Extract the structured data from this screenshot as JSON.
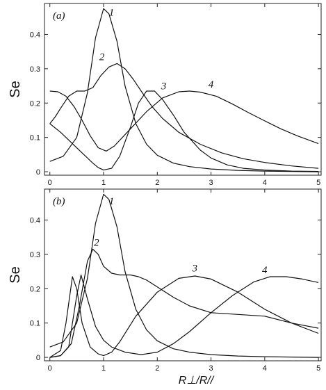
{
  "chart_data": [
    {
      "type": "line",
      "panel_label": "(a)",
      "ylabel": "Se",
      "xlabel": "",
      "xlim": [
        -0.1,
        5.05
      ],
      "ylim": [
        -0.01,
        0.49
      ],
      "xticks": [
        "0",
        "1",
        "2",
        "3",
        "4",
        "5"
      ],
      "yticks": [
        "0",
        "0.1",
        "0.2",
        "0.3",
        "0.4"
      ],
      "ytick_values": [
        0,
        0.1,
        0.2,
        0.3,
        0.4
      ],
      "xtick_values": [
        0,
        1,
        2,
        3,
        4,
        5
      ],
      "series": [
        {
          "name": "1",
          "label_at": [
            1.1,
            0.455
          ],
          "x": [
            0,
            0.25,
            0.5,
            0.7,
            0.85,
            1.0,
            1.1,
            1.25,
            1.4,
            1.6,
            1.8,
            2.0,
            2.3,
            2.6,
            3.0,
            3.5,
            4.0,
            5.0
          ],
          "y": [
            0.03,
            0.045,
            0.1,
            0.23,
            0.39,
            0.475,
            0.46,
            0.38,
            0.25,
            0.14,
            0.08,
            0.048,
            0.025,
            0.015,
            0.008,
            0.004,
            0.002,
            0.0
          ]
        },
        {
          "name": "2",
          "label_at": [
            0.92,
            0.325
          ],
          "x": [
            0,
            0.1,
            0.2,
            0.35,
            0.5,
            0.65,
            0.8,
            0.95,
            1.1,
            1.25,
            1.4,
            1.55,
            1.7,
            1.9,
            2.1,
            2.4,
            2.8,
            3.2,
            3.6,
            4.0,
            4.5,
            5.0
          ],
          "y": [
            0.14,
            0.16,
            0.185,
            0.22,
            0.235,
            0.235,
            0.245,
            0.28,
            0.305,
            0.315,
            0.3,
            0.27,
            0.235,
            0.19,
            0.155,
            0.115,
            0.08,
            0.055,
            0.038,
            0.027,
            0.017,
            0.01
          ]
        },
        {
          "name": "3",
          "label_at": [
            2.07,
            0.24
          ],
          "x": [
            0,
            0.2,
            0.4,
            0.6,
            0.8,
            0.9,
            1.0,
            1.15,
            1.3,
            1.5,
            1.65,
            1.8,
            1.95,
            2.1,
            2.3,
            2.5,
            2.8,
            3.0,
            3.3,
            3.6,
            4.0,
            4.5,
            5.0
          ],
          "y": [
            0.14,
            0.115,
            0.085,
            0.055,
            0.025,
            0.012,
            0.005,
            0.01,
            0.045,
            0.13,
            0.2,
            0.235,
            0.235,
            0.21,
            0.165,
            0.115,
            0.063,
            0.04,
            0.02,
            0.01,
            0.005,
            0.002,
            0.001
          ]
        },
        {
          "name": "4",
          "label_at": [
            2.95,
            0.245
          ],
          "x": [
            0,
            0.15,
            0.3,
            0.45,
            0.6,
            0.75,
            0.9,
            1.05,
            1.2,
            1.5,
            1.8,
            2.1,
            2.4,
            2.6,
            2.8,
            3.1,
            3.4,
            3.7,
            4.0,
            4.3,
            4.6,
            5.0
          ],
          "y": [
            0.235,
            0.233,
            0.22,
            0.19,
            0.15,
            0.105,
            0.07,
            0.06,
            0.075,
            0.125,
            0.175,
            0.215,
            0.233,
            0.235,
            0.232,
            0.22,
            0.197,
            0.172,
            0.148,
            0.125,
            0.105,
            0.082
          ]
        }
      ]
    },
    {
      "type": "line",
      "panel_label": "(b)",
      "ylabel": "Se",
      "xlabel": "R⊥/R//",
      "xlim": [
        -0.1,
        5.05
      ],
      "ylim": [
        -0.01,
        0.49
      ],
      "xticks": [
        "0",
        "1",
        "2",
        "3",
        "4",
        "5"
      ],
      "yticks": [
        "0",
        "0.1",
        "0.2",
        "0.3",
        "0.4"
      ],
      "ytick_values": [
        0,
        0.1,
        0.2,
        0.3,
        0.4
      ],
      "xtick_values": [
        0,
        1,
        2,
        3,
        4,
        5
      ],
      "series": [
        {
          "name": "1",
          "label_at": [
            1.1,
            0.445
          ],
          "x": [
            0,
            0.25,
            0.5,
            0.7,
            0.85,
            1.0,
            1.1,
            1.25,
            1.4,
            1.6,
            1.8,
            2.0,
            2.3,
            2.6,
            3.0,
            3.5,
            4.0,
            5.0
          ],
          "y": [
            0.03,
            0.045,
            0.1,
            0.23,
            0.39,
            0.475,
            0.46,
            0.38,
            0.25,
            0.14,
            0.08,
            0.048,
            0.025,
            0.015,
            0.008,
            0.004,
            0.002,
            0.0
          ]
        },
        {
          "name": "2",
          "label_at": [
            0.82,
            0.325
          ],
          "x": [
            0,
            0.2,
            0.4,
            0.55,
            0.7,
            0.8,
            0.9,
            1.0,
            1.15,
            1.3,
            1.5,
            1.65,
            1.8,
            2.0,
            2.3,
            2.6,
            3.0,
            3.5,
            4.0,
            4.5,
            5.0
          ],
          "y": [
            0.0,
            0.005,
            0.04,
            0.15,
            0.28,
            0.315,
            0.3,
            0.265,
            0.245,
            0.24,
            0.24,
            0.235,
            0.225,
            0.205,
            0.175,
            0.15,
            0.13,
            0.125,
            0.12,
            0.1,
            0.085
          ]
        },
        {
          "name": "3",
          "label_at": [
            2.65,
            0.25
          ],
          "x": [
            0,
            0.2,
            0.3,
            0.42,
            0.5,
            0.6,
            0.75,
            0.9,
            1.0,
            1.15,
            1.3,
            1.6,
            2.0,
            2.4,
            2.7,
            3.0,
            3.5,
            4.0,
            4.5,
            5.0
          ],
          "y": [
            0.0,
            0.02,
            0.1,
            0.235,
            0.2,
            0.1,
            0.03,
            0.01,
            0.005,
            0.015,
            0.045,
            0.12,
            0.19,
            0.23,
            0.237,
            0.228,
            0.19,
            0.14,
            0.1,
            0.07
          ]
        },
        {
          "name": "4",
          "label_at": [
            3.95,
            0.245
          ],
          "x": [
            0,
            0.2,
            0.35,
            0.5,
            0.58,
            0.7,
            0.85,
            1.0,
            1.15,
            1.4,
            1.7,
            2.0,
            2.3,
            2.6,
            3.0,
            3.4,
            3.8,
            4.1,
            4.4,
            4.7,
            5.0
          ],
          "y": [
            0.0,
            0.005,
            0.03,
            0.18,
            0.24,
            0.17,
            0.09,
            0.05,
            0.03,
            0.015,
            0.008,
            0.015,
            0.04,
            0.075,
            0.13,
            0.18,
            0.22,
            0.235,
            0.235,
            0.228,
            0.218
          ]
        }
      ]
    }
  ]
}
